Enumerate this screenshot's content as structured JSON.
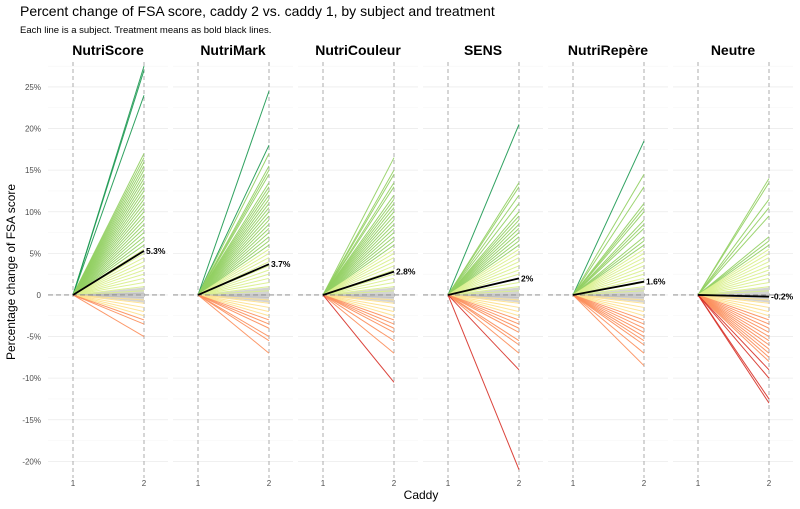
{
  "chart_data": {
    "type": "line",
    "title": "Percent change of FSA score, caddy 2 vs. caddy 1, by subject and treatment",
    "subtitle": "Each line is a subject. Treatment means as bold black lines.",
    "xlabel": "Caddy",
    "ylabel": "Percentage change of FSA score",
    "x": [
      1,
      2
    ],
    "ylim": [
      -22,
      28
    ],
    "yticks": [
      -20,
      -15,
      -10,
      -5,
      0,
      5,
      10,
      15,
      20,
      25
    ],
    "ytick_labels": [
      "-20%",
      "-15%",
      "-10%",
      "-5%",
      "0",
      "5%",
      "10%",
      "15%",
      "20%",
      "25%"
    ],
    "xtick_labels": [
      "1",
      "2"
    ],
    "grid": true,
    "colors": {
      "positive_high": "#1a9850",
      "positive_mid": "#91cf60",
      "positive_low": "#d9ef8b",
      "neutral": "#bdbdbd",
      "negative_low": "#fee08b",
      "negative_mid": "#fc8d59",
      "negative_high": "#d73027",
      "mean": "#000000"
    },
    "panels": [
      {
        "name": "NutriScore",
        "mean": 5.3,
        "mean_label": "5.3%",
        "subject_values": [
          27.5,
          27,
          24,
          17,
          16.5,
          16,
          15.5,
          15,
          14.5,
          14,
          13.5,
          13,
          12.5,
          12,
          11.5,
          11,
          10.5,
          10,
          9.5,
          9,
          8.5,
          8,
          7.5,
          7,
          6.5,
          6,
          5.5,
          5,
          4.5,
          4,
          3.5,
          3,
          2.5,
          2,
          1.5,
          1,
          0.5,
          0.2,
          0,
          0,
          -0.3,
          -0.6,
          -1,
          -1.5,
          -2,
          -2.5,
          -3,
          -3.5,
          -5
        ]
      },
      {
        "name": "NutriMark",
        "mean": 3.7,
        "mean_label": "3.7%",
        "subject_values": [
          24.5,
          18,
          17,
          15.5,
          15,
          14.5,
          13.5,
          13,
          12.5,
          12,
          11.5,
          11,
          10.5,
          10,
          9.5,
          9,
          8.5,
          8,
          7.5,
          7,
          6.5,
          6,
          5.5,
          5,
          4.5,
          4,
          3.5,
          3,
          2.5,
          2,
          1.5,
          1,
          0.5,
          0,
          0,
          -0.3,
          -0.6,
          -1,
          -1.5,
          -2,
          -2.5,
          -3,
          -3.5,
          -4,
          -5,
          -5.5,
          -7
        ]
      },
      {
        "name": "NutriCouleur",
        "mean": 2.8,
        "mean_label": "2.8%",
        "subject_values": [
          16.5,
          15,
          14.5,
          13.5,
          13,
          12,
          11.5,
          11,
          10.5,
          10,
          9.5,
          9,
          8.5,
          8,
          7.5,
          7,
          6.5,
          6,
          5.5,
          5,
          4.5,
          4,
          3.5,
          3,
          2.5,
          2,
          1.5,
          1,
          0.5,
          0,
          0,
          -0.3,
          -0.6,
          -1,
          -1.5,
          -2,
          -2.5,
          -3,
          -3.5,
          -4,
          -4.5,
          -5.5,
          -7,
          -10.5
        ]
      },
      {
        "name": "SENS",
        "mean": 2,
        "mean_label": "2%",
        "subject_values": [
          20.5,
          13.5,
          13,
          12,
          11,
          10,
          9.5,
          9,
          8.5,
          8,
          7.5,
          7,
          6.5,
          6,
          5.5,
          5,
          4.5,
          4,
          3.5,
          3,
          2.5,
          2,
          1.5,
          1,
          0.5,
          0,
          0,
          -0.3,
          -0.6,
          -1,
          -1.5,
          -2,
          -2.5,
          -3,
          -3.5,
          -4,
          -4.5,
          -5.5,
          -6,
          -7,
          -9,
          -21
        ]
      },
      {
        "name": "NutriRepère",
        "mean": 1.6,
        "mean_label": "1.6%",
        "subject_values": [
          18.5,
          14.5,
          13,
          11,
          10.5,
          10,
          9,
          8.5,
          8,
          7,
          6.5,
          6,
          5.5,
          5,
          4.5,
          4,
          3.5,
          3,
          2.5,
          2,
          1.5,
          1,
          0.5,
          0,
          0,
          -0.3,
          -0.6,
          -1,
          -1.5,
          -2,
          -2.5,
          -3,
          -3.5,
          -4,
          -4.5,
          -5,
          -5.5,
          -6,
          -7,
          -8.5
        ]
      },
      {
        "name": "Neutre",
        "mean": -0.2,
        "mean_label": "-0.2%",
        "subject_values": [
          14,
          13.5,
          11.5,
          10.5,
          9.5,
          7,
          6.5,
          6,
          5.5,
          5,
          4.5,
          4,
          3.5,
          3,
          2.5,
          2,
          1.5,
          1,
          0.5,
          0,
          0,
          -0.3,
          -0.6,
          -1,
          -1.5,
          -2,
          -2.5,
          -3,
          -3.5,
          -4,
          -4.5,
          -5,
          -5.5,
          -6,
          -6.5,
          -7,
          -7.5,
          -8,
          -9,
          -10,
          -12.5,
          -13
        ]
      }
    ]
  }
}
